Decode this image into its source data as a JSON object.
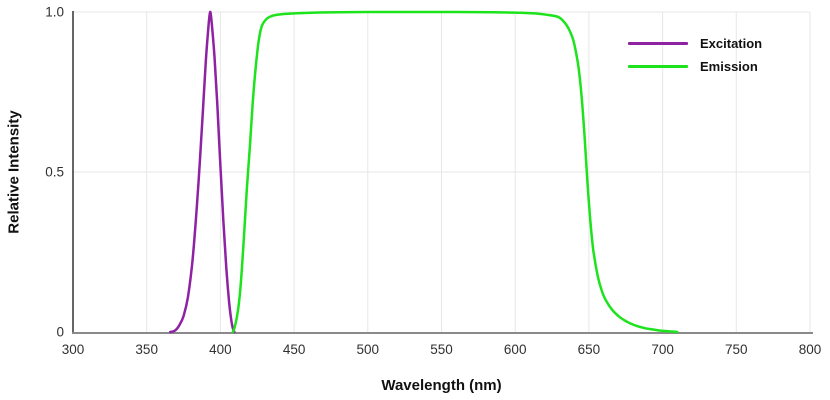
{
  "chart_data": {
    "type": "line",
    "title": "",
    "xlabel": "Wavelength (nm)",
    "ylabel": "Relative Intensity",
    "xlim": [
      300,
      800
    ],
    "ylim": [
      0,
      1
    ],
    "x_ticks": [
      300,
      350,
      400,
      450,
      500,
      550,
      600,
      650,
      700,
      750,
      800
    ],
    "y_ticks": [
      0,
      0.5,
      1
    ],
    "y_tick_labels": [
      "0",
      "0.5",
      "1.0"
    ],
    "grid": true,
    "legend_position": "inside-top-right",
    "series": [
      {
        "name": "Excitation",
        "color": "#8e22a3",
        "peak_nm": 393,
        "points": [
          [
            366,
            0
          ],
          [
            369,
            0.004
          ],
          [
            372,
            0.02
          ],
          [
            375,
            0.05
          ],
          [
            378,
            0.11
          ],
          [
            381,
            0.22
          ],
          [
            384,
            0.39
          ],
          [
            386,
            0.53
          ],
          [
            388,
            0.68
          ],
          [
            390,
            0.84
          ],
          [
            392,
            0.96
          ],
          [
            393,
            1.0
          ],
          [
            394,
            0.97
          ],
          [
            396,
            0.86
          ],
          [
            398,
            0.7
          ],
          [
            400,
            0.52
          ],
          [
            402,
            0.35
          ],
          [
            404,
            0.2
          ],
          [
            406,
            0.09
          ],
          [
            408,
            0.02
          ],
          [
            409.5,
            0
          ]
        ]
      },
      {
        "name": "Emission",
        "color": "#1ce31c",
        "plateau_nm": [
          430,
          635
        ],
        "points": [
          [
            408.5,
            0
          ],
          [
            410,
            0.02
          ],
          [
            412,
            0.07
          ],
          [
            414,
            0.16
          ],
          [
            416,
            0.3
          ],
          [
            418,
            0.45
          ],
          [
            420,
            0.58
          ],
          [
            422,
            0.72
          ],
          [
            424,
            0.83
          ],
          [
            426,
            0.91
          ],
          [
            428,
            0.955
          ],
          [
            431,
            0.977
          ],
          [
            434,
            0.986
          ],
          [
            438,
            0.991
          ],
          [
            444,
            0.994
          ],
          [
            452,
            0.996
          ],
          [
            465,
            0.998
          ],
          [
            480,
            0.999
          ],
          [
            500,
            1.0
          ],
          [
            530,
            1.0
          ],
          [
            560,
            1.0
          ],
          [
            585,
            0.999
          ],
          [
            600,
            0.998
          ],
          [
            615,
            0.995
          ],
          [
            622,
            0.991
          ],
          [
            629,
            0.985
          ],
          [
            633,
            0.97
          ],
          [
            636,
            0.95
          ],
          [
            639,
            0.918
          ],
          [
            641,
            0.88
          ],
          [
            643,
            0.825
          ],
          [
            645,
            0.74
          ],
          [
            647,
            0.615
          ],
          [
            649,
            0.47
          ],
          [
            651,
            0.345
          ],
          [
            653,
            0.255
          ],
          [
            656,
            0.175
          ],
          [
            659,
            0.125
          ],
          [
            662,
            0.095
          ],
          [
            666,
            0.068
          ],
          [
            670,
            0.05
          ],
          [
            674,
            0.037
          ],
          [
            678,
            0.027
          ],
          [
            683,
            0.018
          ],
          [
            688,
            0.012
          ],
          [
            693,
            0.008
          ],
          [
            699,
            0.004
          ],
          [
            705,
            0.002
          ],
          [
            710,
            0
          ]
        ]
      }
    ]
  },
  "colors": {
    "background": "#ffffff",
    "grid": "#e7e7e7",
    "axis_x": "#8a8a8a",
    "axis_y": "#555555",
    "tick_text": "#303030",
    "title_text": "#111111"
  }
}
